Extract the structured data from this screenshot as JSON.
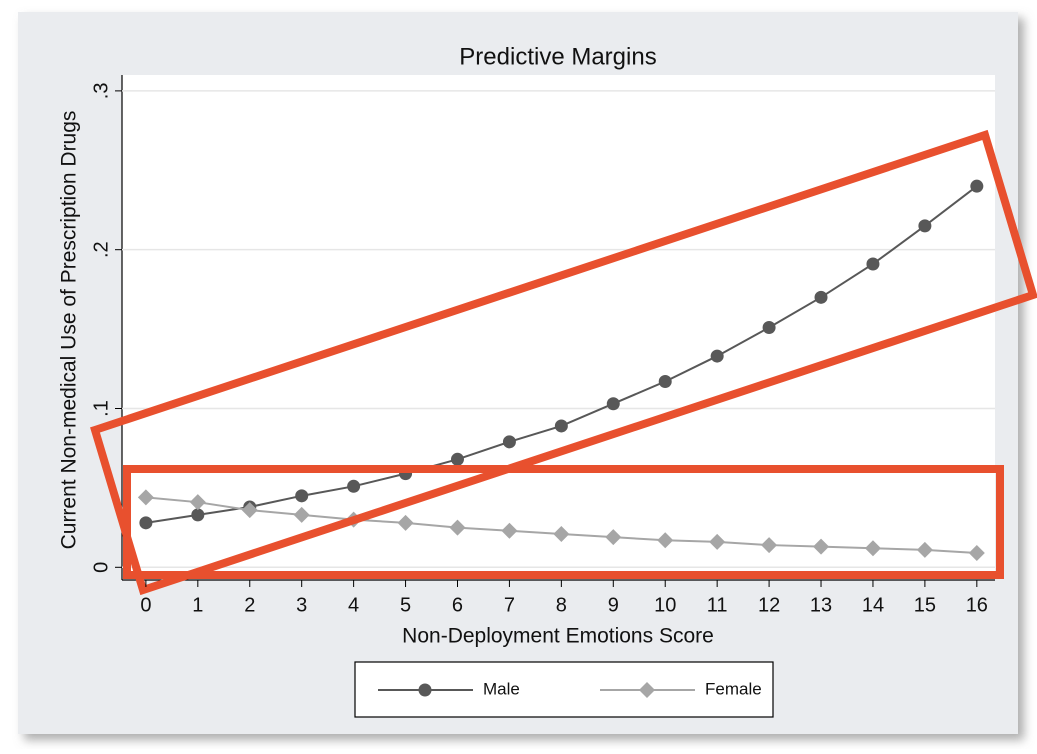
{
  "chart_data": {
    "type": "line",
    "title": "Predictive Margins",
    "x_label": "Non-Deployment Emotions Score",
    "y_label": "Current Non-medical Use of Prescription Drugs",
    "x": [
      0,
      1,
      2,
      3,
      4,
      5,
      6,
      7,
      8,
      9,
      10,
      11,
      12,
      13,
      14,
      15,
      16
    ],
    "series": [
      {
        "name": "Male",
        "color": "#585858",
        "marker": "circle",
        "values": [
          0.028,
          0.033,
          0.038,
          0.045,
          0.051,
          0.059,
          0.068,
          0.079,
          0.089,
          0.103,
          0.117,
          0.133,
          0.151,
          0.17,
          0.191,
          0.215,
          0.24
        ]
      },
      {
        "name": "Female",
        "color": "#a6a6a6",
        "marker": "diamond",
        "values": [
          0.044,
          0.041,
          0.036,
          0.033,
          0.03,
          0.028,
          0.025,
          0.023,
          0.021,
          0.019,
          0.017,
          0.016,
          0.014,
          0.013,
          0.012,
          0.011,
          0.009
        ]
      }
    ],
    "xlim": [
      -0.46,
      16.35
    ],
    "xticks": [
      0,
      1,
      2,
      3,
      4,
      5,
      6,
      7,
      8,
      9,
      10,
      11,
      12,
      13,
      14,
      15,
      16
    ],
    "ylim": [
      -0.008,
      0.31
    ],
    "yticks": [
      0,
      {
        "value": 0.1,
        "label": ".1"
      },
      {
        "value": 0.2,
        "label": ".2"
      },
      {
        "value": 0.3,
        "label": ".3"
      }
    ],
    "grid": true,
    "legend": "bottom"
  }
}
